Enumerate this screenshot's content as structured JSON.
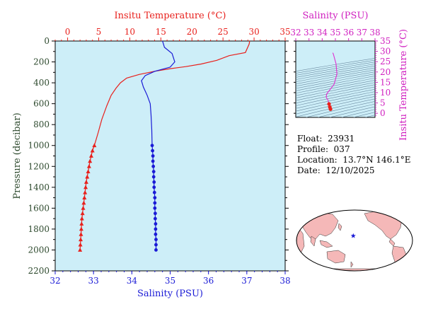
{
  "colors": {
    "temperature": "#e8201c",
    "salinity": "#1a1ad6",
    "ts_curve": "#e030d0",
    "ts_axis": "#d020c0",
    "pressure_axis": "#2e4a2e",
    "plot_bg": "#cdeef8",
    "contour": "#6b8aa0",
    "land": "#f5b8b8",
    "ocean": "#ffffff",
    "marker_star": "#1a1ad6"
  },
  "chart_data": [
    {
      "id": "profile",
      "type": "line",
      "title": "",
      "ylabel": "Pressure (decibar)",
      "ylim": [
        2200,
        0
      ],
      "yticks": [
        0,
        200,
        400,
        600,
        800,
        1000,
        1200,
        1400,
        1600,
        1800,
        2000,
        2200
      ],
      "ytick_labels": [
        "0",
        "200",
        "400",
        "600",
        "800",
        "1000",
        "1200",
        "1400",
        "1600",
        "1800",
        "2000",
        "2200"
      ],
      "top_axis": {
        "label": "Insitu Temperature (°C)",
        "lim": [
          -2,
          35
        ],
        "ticks": [
          0,
          5,
          10,
          15,
          20,
          25,
          30,
          35
        ],
        "tick_labels": [
          "0",
          "5",
          "10",
          "15",
          "20",
          "25",
          "30",
          "35"
        ]
      },
      "bottom_axis": {
        "label": "Salinity (PSU)",
        "lim": [
          32,
          38
        ],
        "ticks": [
          32,
          33,
          34,
          35,
          36,
          37,
          38
        ],
        "tick_labels": [
          "32",
          "33",
          "34",
          "35",
          "36",
          "37",
          "38"
        ]
      },
      "series": [
        {
          "key": "temperature",
          "axis": "top",
          "marker": "triangle",
          "points": [
            {
              "x": 29.3,
              "y": 0
            },
            {
              "x": 29.2,
              "y": 30
            },
            {
              "x": 28.6,
              "y": 110
            },
            {
              "x": 26.0,
              "y": 140
            },
            {
              "x": 24.0,
              "y": 185
            },
            {
              "x": 21.5,
              "y": 220
            },
            {
              "x": 19.0,
              "y": 245
            },
            {
              "x": 16.5,
              "y": 265
            },
            {
              "x": 14.0,
              "y": 290
            },
            {
              "x": 11.5,
              "y": 320
            },
            {
              "x": 9.5,
              "y": 355
            },
            {
              "x": 8.5,
              "y": 400
            },
            {
              "x": 7.8,
              "y": 450
            },
            {
              "x": 7.0,
              "y": 520
            },
            {
              "x": 6.3,
              "y": 620
            },
            {
              "x": 5.5,
              "y": 750
            },
            {
              "x": 4.9,
              "y": 880
            },
            {
              "x": 4.5,
              "y": 960
            },
            {
              "x": 4.3,
              "y": 1000
            },
            {
              "x": 4.0,
              "y": 1050
            },
            {
              "x": 3.8,
              "y": 1100
            },
            {
              "x": 3.6,
              "y": 1150
            },
            {
              "x": 3.45,
              "y": 1200
            },
            {
              "x": 3.3,
              "y": 1250
            },
            {
              "x": 3.15,
              "y": 1300
            },
            {
              "x": 3.0,
              "y": 1350
            },
            {
              "x": 2.9,
              "y": 1400
            },
            {
              "x": 2.8,
              "y": 1450
            },
            {
              "x": 2.7,
              "y": 1500
            },
            {
              "x": 2.6,
              "y": 1550
            },
            {
              "x": 2.5,
              "y": 1600
            },
            {
              "x": 2.4,
              "y": 1650
            },
            {
              "x": 2.3,
              "y": 1700
            },
            {
              "x": 2.25,
              "y": 1750
            },
            {
              "x": 2.2,
              "y": 1800
            },
            {
              "x": 2.15,
              "y": 1850
            },
            {
              "x": 2.1,
              "y": 1900
            },
            {
              "x": 2.05,
              "y": 1950
            },
            {
              "x": 2.0,
              "y": 2000
            }
          ],
          "marker_from_y": 1000
        },
        {
          "key": "salinity",
          "axis": "bottom",
          "marker": "circle",
          "points": [
            {
              "x": 34.8,
              "y": 0
            },
            {
              "x": 34.85,
              "y": 60
            },
            {
              "x": 35.05,
              "y": 120
            },
            {
              "x": 35.12,
              "y": 200
            },
            {
              "x": 35.0,
              "y": 250
            },
            {
              "x": 34.6,
              "y": 290
            },
            {
              "x": 34.35,
              "y": 330
            },
            {
              "x": 34.25,
              "y": 380
            },
            {
              "x": 34.3,
              "y": 440
            },
            {
              "x": 34.4,
              "y": 520
            },
            {
              "x": 34.48,
              "y": 600
            },
            {
              "x": 34.5,
              "y": 700
            },
            {
              "x": 34.52,
              "y": 850
            },
            {
              "x": 34.53,
              "y": 1000
            },
            {
              "x": 34.54,
              "y": 1050
            },
            {
              "x": 34.55,
              "y": 1100
            },
            {
              "x": 34.55,
              "y": 1150
            },
            {
              "x": 34.56,
              "y": 1200
            },
            {
              "x": 34.57,
              "y": 1250
            },
            {
              "x": 34.57,
              "y": 1300
            },
            {
              "x": 34.58,
              "y": 1350
            },
            {
              "x": 34.58,
              "y": 1400
            },
            {
              "x": 34.59,
              "y": 1450
            },
            {
              "x": 34.6,
              "y": 1500
            },
            {
              "x": 34.6,
              "y": 1550
            },
            {
              "x": 34.6,
              "y": 1600
            },
            {
              "x": 34.61,
              "y": 1650
            },
            {
              "x": 34.61,
              "y": 1700
            },
            {
              "x": 34.62,
              "y": 1750
            },
            {
              "x": 34.62,
              "y": 1800
            },
            {
              "x": 34.62,
              "y": 1850
            },
            {
              "x": 34.63,
              "y": 1900
            },
            {
              "x": 34.63,
              "y": 1950
            },
            {
              "x": 34.63,
              "y": 2000
            }
          ],
          "marker_from_y": 1000
        }
      ]
    },
    {
      "id": "ts_diagram",
      "type": "line",
      "title": "",
      "top_axis": {
        "label": "Salinity (PSU)",
        "lim": [
          32,
          38
        ],
        "ticks": [
          32,
          33,
          34,
          35,
          36,
          37,
          38
        ],
        "tick_labels": [
          "32",
          "33",
          "34",
          "35",
          "36",
          "37",
          "38"
        ]
      },
      "right_axis": {
        "label": "Insitu Temperature (°C)",
        "lim": [
          -2,
          35
        ],
        "ticks": [
          0,
          5,
          10,
          15,
          20,
          25,
          30,
          35
        ],
        "tick_labels": [
          "0",
          "5",
          "10",
          "15",
          "20",
          "25",
          "30",
          "35"
        ]
      },
      "density_contours": true,
      "series": [
        {
          "key": "ts_curve",
          "points": [
            {
              "x": 34.8,
              "y": 29.3
            },
            {
              "x": 34.85,
              "y": 28.6
            },
            {
              "x": 35.05,
              "y": 24.0
            },
            {
              "x": 35.12,
              "y": 19.0
            },
            {
              "x": 34.9,
              "y": 14.0
            },
            {
              "x": 34.6,
              "y": 11.5
            },
            {
              "x": 34.35,
              "y": 9.5
            },
            {
              "x": 34.3,
              "y": 7.8
            },
            {
              "x": 34.45,
              "y": 6.3
            },
            {
              "x": 34.52,
              "y": 4.5
            },
            {
              "x": 34.58,
              "y": 3.0
            },
            {
              "x": 34.63,
              "y": 2.0
            }
          ],
          "marker_below_y": 4.5
        }
      ]
    }
  ],
  "info": {
    "float_label": "Float:",
    "float_value": "23931",
    "profile_label": "Profile:",
    "profile_value": "037",
    "location_label": "Location:",
    "location_value": "13.7°N  146.1°E",
    "date_label": "Date:",
    "date_value": "12/10/2025"
  },
  "map": {
    "marker_lat": 13.7,
    "marker_lon": 146.1,
    "marker_icon": "star-icon"
  }
}
